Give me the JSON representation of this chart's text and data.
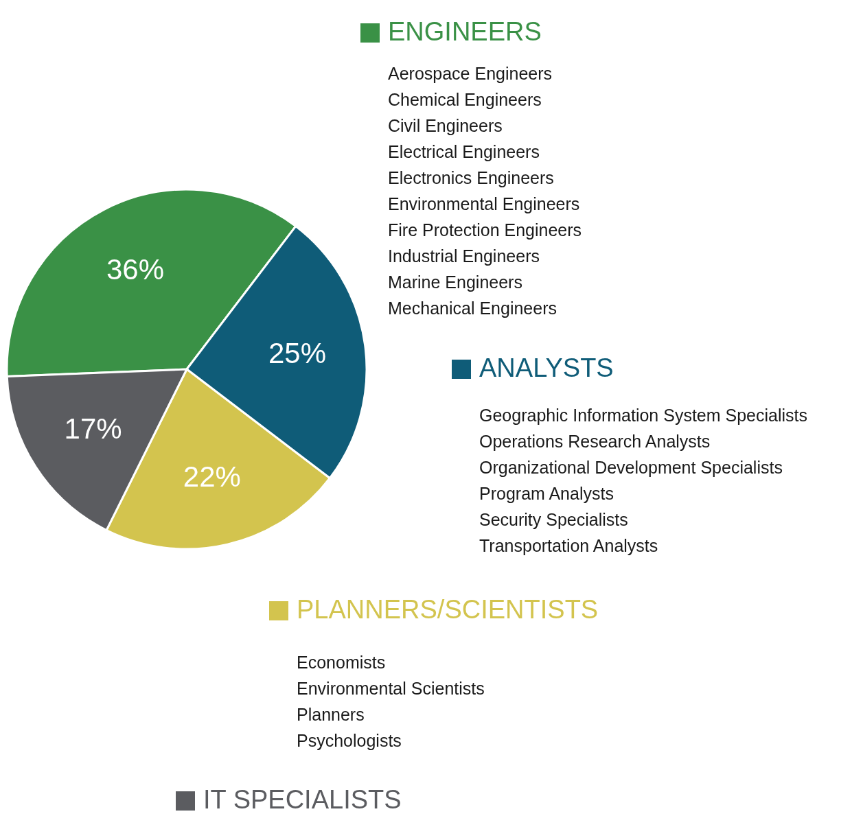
{
  "chart_data": {
    "type": "pie",
    "categories": [
      "ENGINEERS",
      "ANALYSTS",
      "PLANNERS/SCIENTISTS",
      "IT SPECIALISTS"
    ],
    "values": [
      36,
      25,
      22,
      17
    ],
    "value_labels": [
      "36%",
      "25%",
      "22%",
      "17%"
    ],
    "colors": [
      "#3a9146",
      "#0f5c78",
      "#d3c44e",
      "#5b5c60"
    ],
    "legend": "right",
    "annotations": [
      "Aerospace Engineers\nChemical Engineers\nCivil Engineers\nElectrical Engineers\nElectronics Engineers\nEnvironmental Engineers\nFire Protection Engineers\nIndustrial Engineers\nMarine Engineers\nMechanical Engineers",
      "Geographic Information System Specialists\nOperations Research Analysts\nOrganizational Development Specialists\nProgram Analysts\nSecurity Specialists\nTransportation Analysts",
      "Economists\nEnvironmental Scientists\nPlanners\nPsychologists"
    ]
  }
}
